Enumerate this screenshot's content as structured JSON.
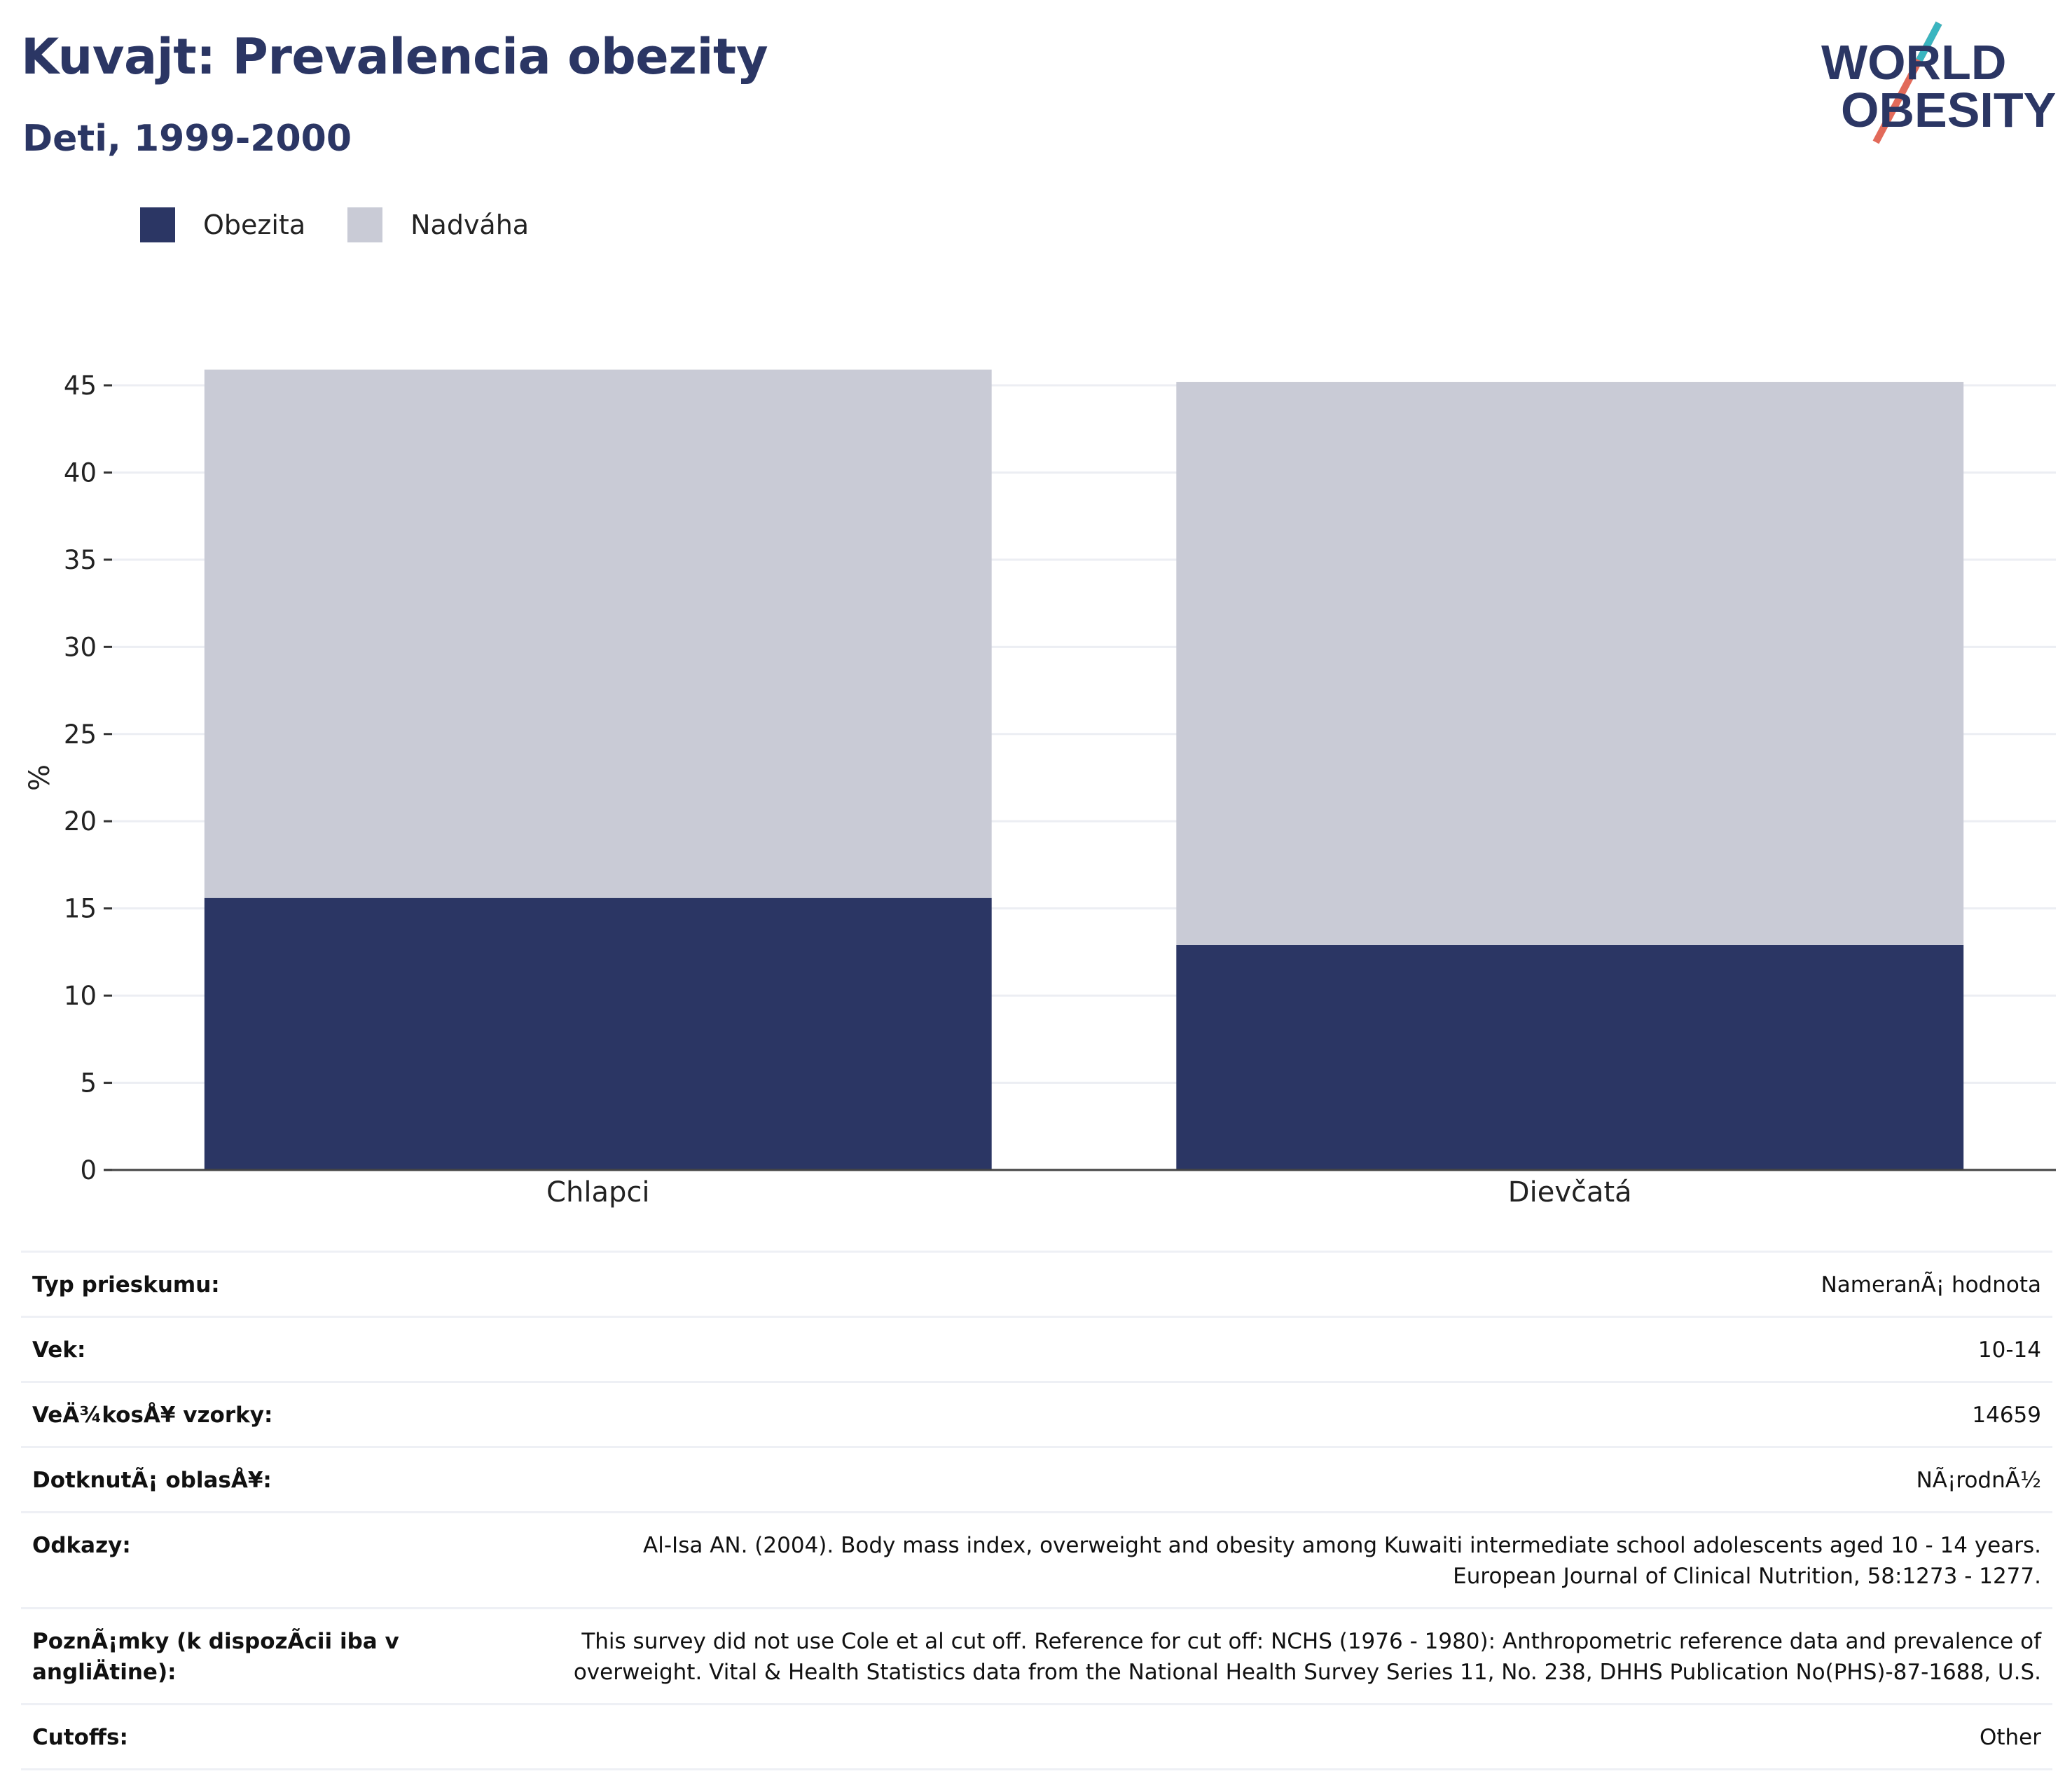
{
  "header": {
    "title": "Kuvajt: Prevalencia obezity",
    "subtitle": "Deti, 1999-2000"
  },
  "logo": {
    "line1": "WORLD",
    "line2": "OBESITY"
  },
  "legend": [
    {
      "label": "Obezita",
      "color": "#2b3664"
    },
    {
      "label": "Nadváha",
      "color": "#c9cbd6"
    }
  ],
  "chart_data": {
    "type": "bar",
    "stacked": true,
    "categories": [
      "Chlapci",
      "Dievčatá"
    ],
    "series": [
      {
        "name": "Obezita",
        "values": [
          15.6,
          12.9
        ],
        "color": "#2b3664"
      },
      {
        "name": "Nadváha",
        "values": [
          30.3,
          32.3
        ],
        "color": "#c9cbd6"
      }
    ],
    "ylabel": "%",
    "xlabel": "",
    "ylim": [
      0,
      45
    ],
    "yticks": [
      0,
      5,
      10,
      15,
      20,
      25,
      30,
      35,
      40,
      45
    ],
    "grid": true,
    "legend_position": "top-left"
  },
  "info_rows": [
    {
      "key": "Typ prieskumu:",
      "value": "NameranÃ¡ hodnota"
    },
    {
      "key": "Vek:",
      "value": "10-14"
    },
    {
      "key": "VeÄ¾kosÅ¥ vzorky:",
      "value": "14659"
    },
    {
      "key": "DotknutÃ¡ oblasÅ¥:",
      "value": "NÃ¡rodnÃ½"
    },
    {
      "key": "Odkazy:",
      "value": "Al-Isa AN. (2004). Body mass index, overweight and obesity among Kuwaiti intermediate school adolescents aged 10 - 14 years. European Journal of Clinical Nutrition, 58:1273 - 1277."
    },
    {
      "key": "PoznÃ¡mky (k dispozÃ­cii iba v angliÄtine):",
      "value": "This survey did not use Cole et al cut off. Reference for cut off: NCHS (1976 - 1980): Anthropometric reference data and prevalence of overweight. Vital & Health Statistics data from the National Health Survey Series 11, No. 238, DHHS Publication No(PHS)-87-1688, U.S."
    },
    {
      "key": "Cutoffs:",
      "value": "Other"
    }
  ]
}
